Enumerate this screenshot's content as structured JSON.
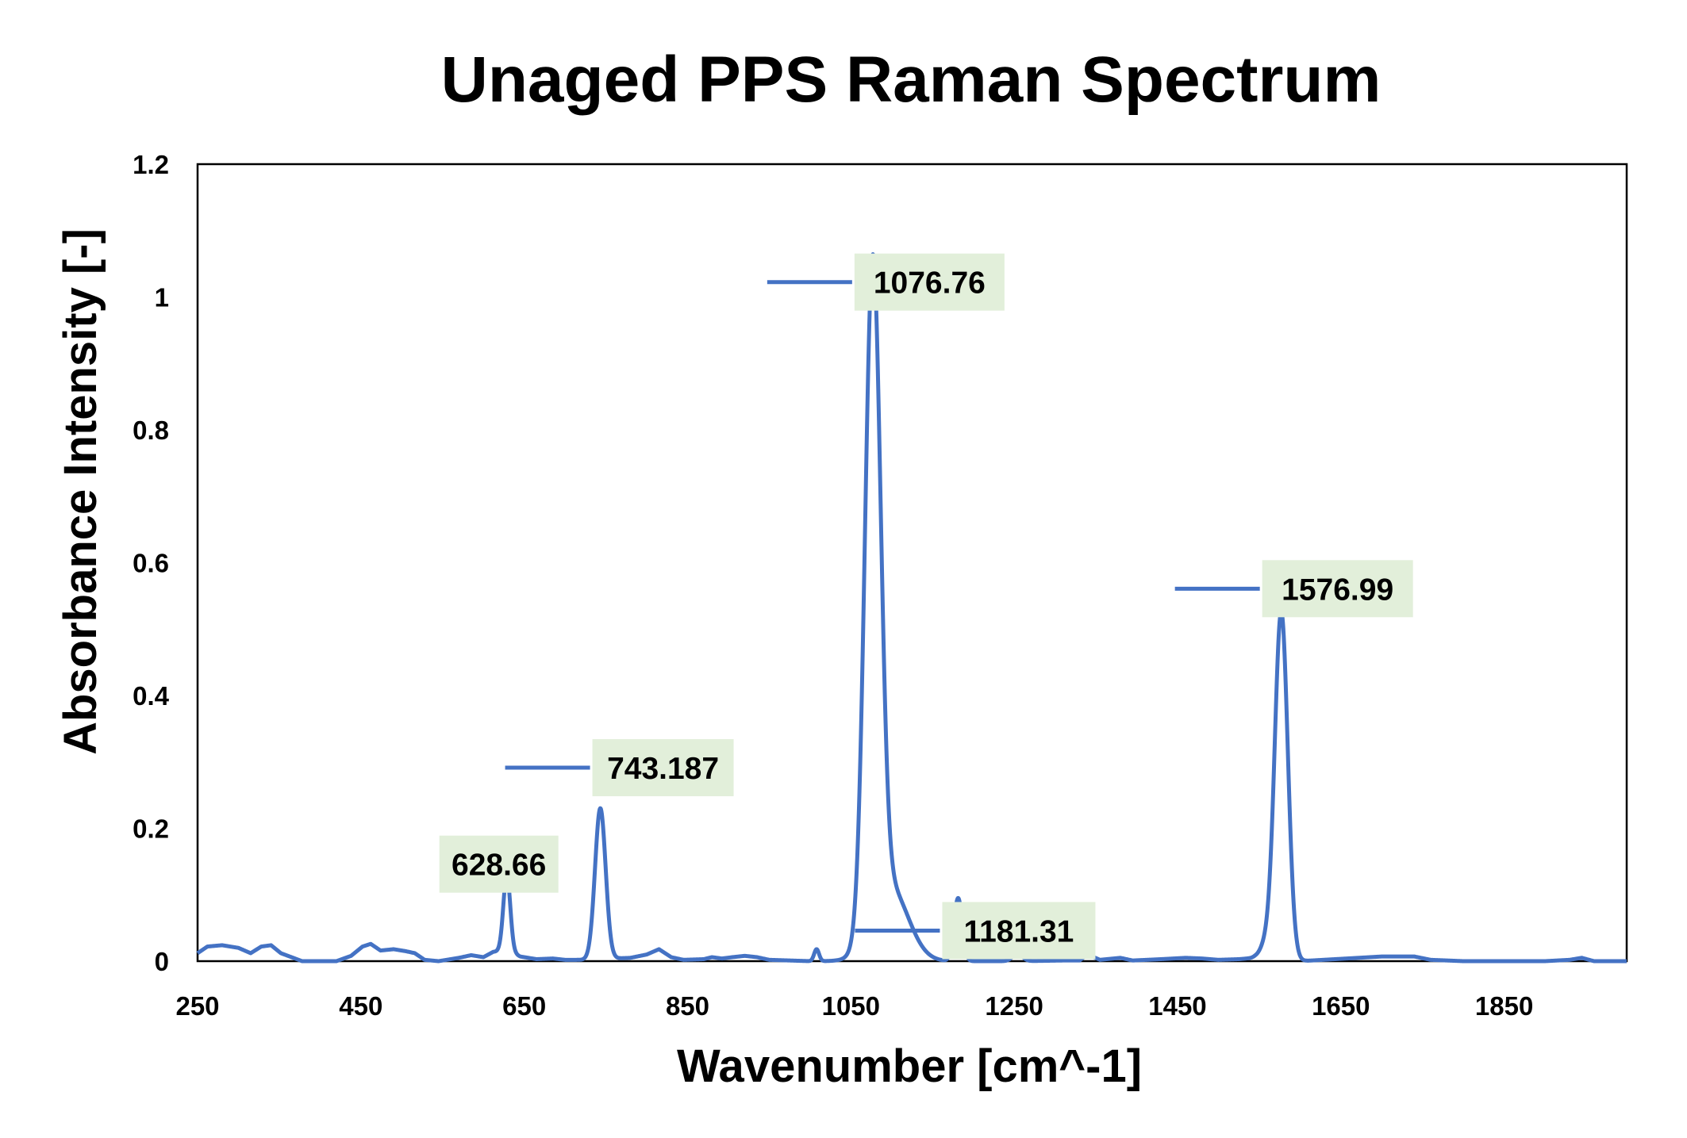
{
  "chart_data": {
    "type": "line",
    "title": "Unaged PPS Raman Spectrum",
    "xlabel": "Wavenumber [cm^-1]",
    "ylabel": "Absorbance Intensity [-]",
    "xlim": [
      250,
      2000
    ],
    "ylim": [
      0,
      1.2
    ],
    "x_ticks": [
      250,
      450,
      650,
      850,
      1050,
      1250,
      1450,
      1650,
      1850
    ],
    "y_ticks": [
      0,
      0.2,
      0.4,
      0.6,
      0.8,
      1,
      1.2
    ],
    "y_tick_labels": [
      "0",
      "0.2",
      "0.4",
      "0.6",
      "0.8",
      "1",
      "1.2"
    ],
    "grid": false,
    "series": [
      {
        "name": "Unaged PPS",
        "color": "#4472C4",
        "baseline": [
          [
            250,
            0.012
          ],
          [
            262,
            0.022
          ],
          [
            280,
            0.024
          ],
          [
            300,
            0.02
          ],
          [
            315,
            0.012
          ],
          [
            328,
            0.022
          ],
          [
            340,
            0.024
          ],
          [
            352,
            0.012
          ],
          [
            365,
            0.006
          ],
          [
            378,
            0.0
          ],
          [
            420,
            0.0
          ],
          [
            438,
            0.008
          ],
          [
            452,
            0.022
          ],
          [
            462,
            0.026
          ],
          [
            474,
            0.016
          ],
          [
            490,
            0.018
          ],
          [
            505,
            0.015
          ],
          [
            516,
            0.012
          ],
          [
            528,
            0.002
          ],
          [
            545,
            0.0
          ],
          [
            570,
            0.005
          ],
          [
            585,
            0.009
          ],
          [
            600,
            0.006
          ],
          [
            612,
            0.014
          ],
          [
            630,
            0.016
          ],
          [
            645,
            0.007
          ],
          [
            665,
            0.003
          ],
          [
            685,
            0.004
          ],
          [
            700,
            0.002
          ],
          [
            740,
            0.002
          ],
          [
            760,
            0.004
          ],
          [
            780,
            0.005
          ],
          [
            800,
            0.01
          ],
          [
            815,
            0.018
          ],
          [
            830,
            0.006
          ],
          [
            845,
            0.002
          ],
          [
            870,
            0.003
          ],
          [
            880,
            0.006
          ],
          [
            892,
            0.004
          ],
          [
            905,
            0.006
          ],
          [
            920,
            0.008
          ],
          [
            935,
            0.006
          ],
          [
            950,
            0.002
          ],
          [
            1000,
            0.0
          ],
          [
            1060,
            0.0
          ],
          [
            1090,
            0.0
          ],
          [
            1260,
            0.0
          ],
          [
            1310,
            0.001
          ],
          [
            1330,
            0.001
          ],
          [
            1340,
            0.01
          ],
          [
            1355,
            0.002
          ],
          [
            1380,
            0.005
          ],
          [
            1395,
            0.001
          ],
          [
            1430,
            0.003
          ],
          [
            1460,
            0.005
          ],
          [
            1480,
            0.004
          ],
          [
            1500,
            0.002
          ],
          [
            1525,
            0.003
          ],
          [
            1545,
            0.005
          ],
          [
            1560,
            0.002
          ],
          [
            1600,
            0.0
          ],
          [
            1700,
            0.007
          ],
          [
            1740,
            0.007
          ],
          [
            1760,
            0.002
          ],
          [
            1800,
            0.0
          ],
          [
            1900,
            0.0
          ],
          [
            1930,
            0.002
          ],
          [
            1945,
            0.005
          ],
          [
            1960,
            0.0
          ],
          [
            2000,
            0.0
          ]
        ],
        "peaks": [
          {
            "center": 628.66,
            "height": 0.115,
            "width": 4.2
          },
          {
            "center": 743.187,
            "height": 0.228,
            "width": 6.5
          },
          {
            "center": 1008,
            "height": 0.018,
            "width": 3.0
          },
          {
            "center": 1076.76,
            "height": 0.995,
            "width": 9.5
          },
          {
            "center": 1098,
            "height": 0.11,
            "width": 22
          },
          {
            "center": 1181.31,
            "height": 0.095,
            "width": 5.0
          },
          {
            "center": 1254,
            "height": 0.011,
            "width": 6.0
          },
          {
            "center": 1576.99,
            "height": 0.525,
            "width": 8.0
          },
          {
            "center": 1558,
            "height": 0.02,
            "width": 7.0
          }
        ]
      }
    ],
    "annotations": [
      {
        "text": "628.66",
        "x": 628.66,
        "y": 0.115
      },
      {
        "text": "743.187",
        "x": 743.187,
        "y": 0.228
      },
      {
        "text": "1076.76",
        "x": 1076.76,
        "y": 0.995
      },
      {
        "text": "1181.31",
        "x": 1181.31,
        "y": 0.095
      },
      {
        "text": "1576.99",
        "x": 1576.99,
        "y": 0.525
      }
    ],
    "label_fill": "#E2EFDA",
    "frame_color": "#000000"
  }
}
